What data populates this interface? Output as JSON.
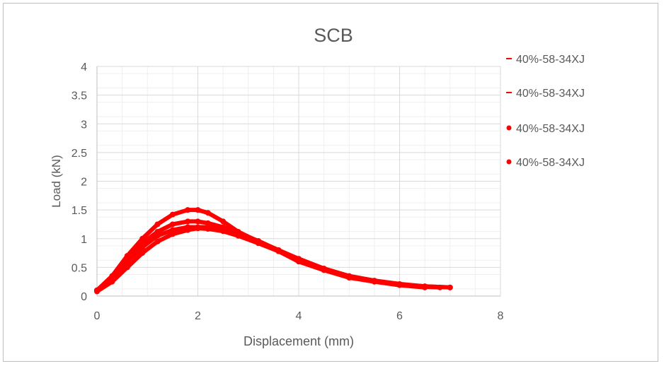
{
  "chart_data": {
    "type": "scatter",
    "title": "SCB",
    "xlabel": "Displacement (mm)",
    "ylabel": "Load (kN)",
    "xlim": [
      0,
      8
    ],
    "ylim": [
      0,
      4
    ],
    "x_ticks": [
      "0",
      "2",
      "4",
      "6",
      "8"
    ],
    "y_ticks": [
      "0",
      "0.5",
      "1",
      "1.5",
      "2",
      "2.5",
      "3",
      "3.5",
      "4"
    ],
    "grid": true,
    "legend_position": "right",
    "series_color": "#ff0000",
    "legend": [
      {
        "label": "40%-58-34XJ",
        "marker": "dash"
      },
      {
        "label": "40%-58-34XJ",
        "marker": "dash"
      },
      {
        "label": "40%-58-34XJ",
        "marker": "dot"
      },
      {
        "label": "40%-58-34XJ",
        "marker": "dot"
      }
    ],
    "series": [
      {
        "x": [
          0.0,
          0.3,
          0.6,
          0.9,
          1.2,
          1.5,
          1.8,
          2.0,
          2.2,
          2.5,
          2.8,
          3.2,
          3.6,
          4.0,
          4.5,
          5.0,
          5.5,
          6.0,
          6.5,
          7.0
        ],
        "y": [
          0.1,
          0.35,
          0.7,
          1.0,
          1.25,
          1.42,
          1.5,
          1.5,
          1.45,
          1.3,
          1.12,
          0.95,
          0.78,
          0.6,
          0.45,
          0.32,
          0.25,
          0.2,
          0.17,
          0.15
        ]
      },
      {
        "x": [
          0.0,
          0.3,
          0.6,
          0.9,
          1.2,
          1.5,
          1.8,
          2.0,
          2.2,
          2.5,
          2.8,
          3.2,
          3.6,
          4.0,
          4.5,
          5.0,
          5.5,
          6.0,
          6.5,
          7.0
        ],
        "y": [
          0.1,
          0.3,
          0.6,
          0.85,
          1.05,
          1.15,
          1.2,
          1.2,
          1.2,
          1.15,
          1.08,
          0.95,
          0.8,
          0.65,
          0.48,
          0.35,
          0.27,
          0.21,
          0.17,
          0.15
        ]
      },
      {
        "x": [
          0.0,
          0.3,
          0.6,
          0.9,
          1.2,
          1.5,
          1.8,
          2.0,
          2.2,
          2.5,
          2.8,
          3.2,
          3.6,
          4.0,
          4.5,
          5.0,
          5.5,
          6.0,
          6.5
        ],
        "y": [
          0.08,
          0.25,
          0.5,
          0.75,
          0.95,
          1.08,
          1.15,
          1.18,
          1.17,
          1.13,
          1.05,
          0.92,
          0.78,
          0.62,
          0.46,
          0.33,
          0.25,
          0.19,
          0.15
        ]
      },
      {
        "x": [
          0.0,
          0.3,
          0.6,
          0.9,
          1.2,
          1.5,
          1.8,
          2.0,
          2.2,
          2.5,
          2.8,
          3.2,
          3.6,
          4.0,
          4.5,
          5.0,
          5.5,
          6.0,
          6.5,
          6.8
        ],
        "y": [
          0.1,
          0.32,
          0.65,
          0.92,
          1.12,
          1.25,
          1.3,
          1.3,
          1.27,
          1.2,
          1.1,
          0.96,
          0.8,
          0.64,
          0.47,
          0.34,
          0.26,
          0.2,
          0.16,
          0.15
        ]
      }
    ]
  }
}
